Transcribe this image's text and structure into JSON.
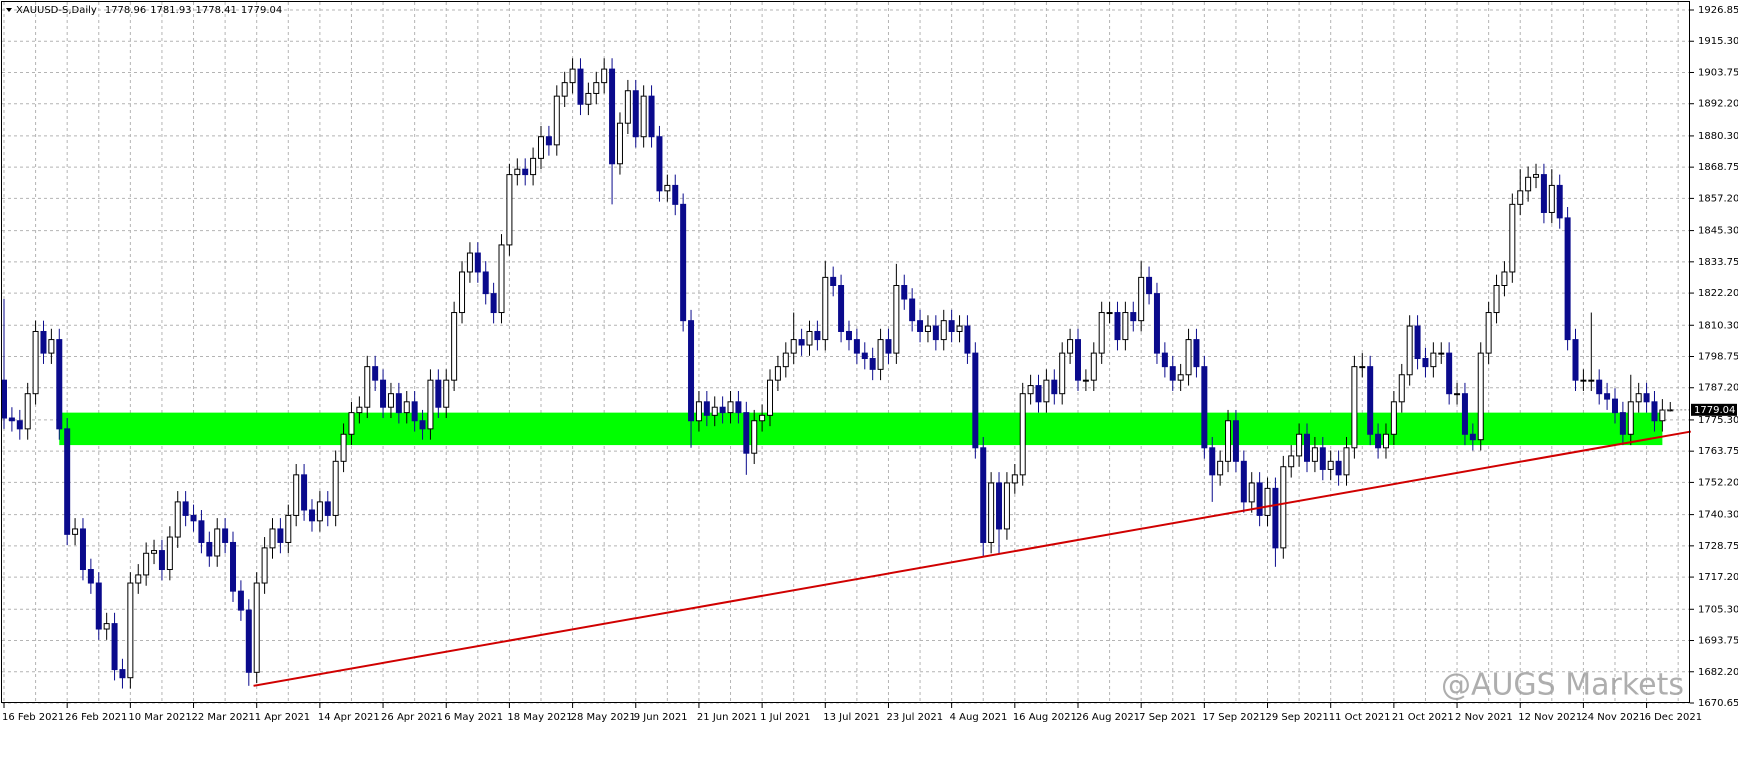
{
  "chart_data": {
    "type": "candlestick",
    "title": "XAUUSD-S,Daily",
    "watermark": "@AUGS Markets",
    "up_color": "#ffffff",
    "down_color": "#0a0a8c",
    "grid": true,
    "ylim": [
      1670.65,
      1926.85
    ],
    "yticks": [
      1670.65,
      {
        "value": 1682.2,
        "label": "1682.20"
      },
      1693.75,
      {
        "value": 1705.3,
        "label": "1705.30"
      },
      {
        "value": 1717.2,
        "label": "1717.20"
      },
      1728.75,
      {
        "value": 1740.3,
        "label": "1740.30"
      },
      {
        "value": 1752.2,
        "label": "1752.20"
      },
      1763.75,
      {
        "value": 1775.3,
        "label": "1775.30"
      },
      {
        "value": 1787.2,
        "label": "1787.20"
      },
      1798.75,
      {
        "value": 1810.3,
        "label": "1810.30"
      },
      {
        "value": 1822.2,
        "label": "1822.20"
      },
      1833.75,
      {
        "value": 1845.3,
        "label": "1845.30"
      },
      {
        "value": 1857.2,
        "label": "1857.20"
      },
      1868.75,
      {
        "value": 1880.3,
        "label": "1880.30"
      },
      {
        "value": 1892.2,
        "label": "1892.20"
      },
      1903.75,
      {
        "value": 1915.3,
        "label": "1915.30"
      },
      1926.85
    ],
    "categories": [
      "16 Feb 2021",
      null,
      null,
      null,
      null,
      null,
      null,
      null,
      "26 Feb 2021",
      null,
      null,
      null,
      null,
      null,
      null,
      null,
      "10 Mar 2021",
      null,
      null,
      null,
      null,
      null,
      null,
      null,
      "22 Mar 2021",
      null,
      null,
      null,
      null,
      null,
      null,
      null,
      "1 Apr 2021",
      null,
      null,
      null,
      null,
      null,
      null,
      null,
      "14 Apr 2021",
      null,
      null,
      null,
      null,
      null,
      null,
      null,
      "26 Apr 2021",
      null,
      null,
      null,
      null,
      null,
      null,
      null,
      "6 May 2021",
      null,
      null,
      null,
      null,
      null,
      null,
      null,
      "18 May 2021",
      null,
      null,
      null,
      null,
      null,
      null,
      null,
      "28 May 2021",
      null,
      null,
      null,
      null,
      null,
      null,
      null,
      "9 Jun 2021",
      null,
      null,
      null,
      null,
      null,
      null,
      null,
      "21 Jun 2021",
      null,
      null,
      null,
      null,
      null,
      null,
      null,
      "1 Jul 2021",
      null,
      null,
      null,
      null,
      null,
      null,
      null,
      "13 Jul 2021",
      null,
      null,
      null,
      null,
      null,
      null,
      null,
      "23 Jul 2021",
      null,
      null,
      null,
      null,
      null,
      null,
      null,
      "4 Aug 2021",
      null,
      null,
      null,
      null,
      null,
      null,
      null,
      "16 Aug 2021",
      null,
      null,
      null,
      null,
      null,
      null,
      null,
      "26 Aug 2021",
      null,
      null,
      null,
      null,
      null,
      null,
      null,
      "7 Sep 2021",
      null,
      null,
      null,
      null,
      null,
      null,
      null,
      "17 Sep 2021",
      null,
      null,
      null,
      null,
      null,
      null,
      null,
      "29 Sep 2021",
      null,
      null,
      null,
      null,
      null,
      null,
      null,
      "11 Oct 2021",
      null,
      null,
      null,
      null,
      null,
      null,
      null,
      "21 Oct 2021",
      null,
      null,
      null,
      null,
      null,
      null,
      null,
      "2 Nov 2021",
      null,
      null,
      null,
      null,
      null,
      null,
      null,
      "12 Nov 2021",
      null,
      null,
      null,
      null,
      null,
      null,
      null,
      "24 Nov 2021",
      null,
      null,
      null,
      null,
      null,
      null,
      null,
      "6 Dec 2021",
      null,
      null,
      null
    ],
    "open": [
      1790,
      1776,
      1775,
      1772,
      1785,
      1808,
      1800,
      1805,
      1772,
      1733,
      1735,
      1720,
      1715,
      1698,
      1700,
      1683,
      1680,
      1715,
      1718,
      1726,
      1727,
      1720,
      1732,
      1745,
      1740,
      1738,
      1730,
      1725,
      1735,
      1730,
      1712,
      1705,
      1682,
      1715,
      1728,
      1735,
      1730,
      1740,
      1755,
      1742,
      1738,
      1745,
      1740,
      1760,
      1770,
      1778,
      1780,
      1795,
      1790,
      1780,
      1785,
      1778,
      1782,
      1775,
      1772,
      1790,
      1780,
      1790,
      1815,
      1830,
      1837,
      1830,
      1822,
      1815,
      1840,
      1866,
      1868,
      1866,
      1872,
      1880,
      1877,
      1895,
      1900,
      1905,
      1892,
      1896,
      1900,
      1905,
      1870,
      1885,
      1897,
      1880,
      1895,
      1880,
      1860,
      1862,
      1855,
      1812,
      1775,
      1782,
      1777,
      1780,
      1778,
      1782,
      1778,
      1763,
      1775,
      1777,
      1790,
      1795,
      1800,
      1805,
      1803,
      1808,
      1805,
      1828,
      1825,
      1808,
      1805,
      1800,
      1798,
      1794,
      1805,
      1800,
      1825,
      1820,
      1812,
      1808,
      1810,
      1805,
      1812,
      1808,
      1810,
      1800,
      1765,
      1730,
      1752,
      1735,
      1752,
      1755,
      1785,
      1788,
      1782,
      1790,
      1785,
      1800,
      1805,
      1790,
      1790,
      1800,
      1815,
      1815,
      1805,
      1815,
      1812,
      1828,
      1822,
      1800,
      1795,
      1790,
      1792,
      1805,
      1795,
      1765,
      1755,
      1760,
      1775,
      1760,
      1745,
      1752,
      1740,
      1750,
      1728,
      1758,
      1762,
      1770,
      1760,
      1765,
      1757,
      1760,
      1755,
      1765,
      1795,
      1795,
      1770,
      1765,
      1770,
      1782,
      1792,
      1810,
      1798,
      1795,
      1800,
      1800,
      1785,
      1785,
      1770,
      1768,
      1800,
      1815,
      1825,
      1830,
      1855,
      1860,
      1865,
      1866,
      1852,
      1862,
      1850,
      1805,
      1790,
      1790,
      1790,
      1785,
      1783,
      1778,
      1770,
      1782,
      1785,
      1782,
      1775,
      1778.96
    ],
    "high": [
      1820,
      1780,
      1779,
      1789,
      1812,
      1812,
      1809,
      1809,
      1776,
      1739,
      1739,
      1724,
      1719,
      1704,
      1704,
      1687,
      1719,
      1722,
      1730,
      1731,
      1731,
      1736,
      1749,
      1749,
      1744,
      1742,
      1734,
      1739,
      1739,
      1734,
      1716,
      1709,
      1719,
      1732,
      1739,
      1739,
      1744,
      1759,
      1759,
      1746,
      1749,
      1749,
      1764,
      1774,
      1782,
      1784,
      1799,
      1799,
      1794,
      1789,
      1789,
      1786,
      1786,
      1779,
      1794,
      1794,
      1794,
      1819,
      1834,
      1841,
      1841,
      1834,
      1826,
      1844,
      1870,
      1872,
      1872,
      1876,
      1884,
      1884,
      1899,
      1904,
      1909,
      1909,
      1900,
      1904,
      1909,
      1909,
      1889,
      1901,
      1901,
      1899,
      1899,
      1884,
      1866,
      1866,
      1859,
      1816,
      1786,
      1786,
      1784,
      1784,
      1786,
      1786,
      1782,
      1779,
      1781,
      1794,
      1799,
      1804,
      1815,
      1809,
      1812,
      1812,
      1834,
      1832,
      1829,
      1812,
      1809,
      1804,
      1802,
      1809,
      1809,
      1833,
      1829,
      1824,
      1816,
      1814,
      1814,
      1816,
      1816,
      1814,
      1814,
      1804,
      1769,
      1756,
      1756,
      1756,
      1759,
      1789,
      1792,
      1792,
      1794,
      1794,
      1804,
      1809,
      1809,
      1794,
      1804,
      1819,
      1819,
      1819,
      1819,
      1819,
      1834,
      1832,
      1826,
      1804,
      1799,
      1796,
      1809,
      1809,
      1799,
      1769,
      1764,
      1779,
      1779,
      1764,
      1756,
      1756,
      1754,
      1754,
      1762,
      1766,
      1774,
      1774,
      1769,
      1769,
      1764,
      1764,
      1769,
      1799,
      1800,
      1799,
      1774,
      1774,
      1786,
      1796,
      1814,
      1814,
      1802,
      1804,
      1804,
      1804,
      1789,
      1789,
      1774,
      1804,
      1819,
      1829,
      1834,
      1859,
      1868,
      1869,
      1870,
      1870,
      1868,
      1866,
      1854,
      1809,
      1794,
      1815,
      1794,
      1789,
      1787,
      1782,
      1792,
      1789,
      1789,
      1786,
      1783,
      1781.93
    ],
    "low": [
      1772,
      1771,
      1768,
      1768,
      1781,
      1796,
      1796,
      1768,
      1729,
      1729,
      1716,
      1711,
      1694,
      1694,
      1679,
      1676,
      1676,
      1711,
      1714,
      1722,
      1716,
      1716,
      1728,
      1736,
      1734,
      1726,
      1721,
      1721,
      1726,
      1708,
      1701,
      1677,
      1678,
      1711,
      1724,
      1726,
      1726,
      1736,
      1738,
      1734,
      1734,
      1736,
      1736,
      1756,
      1766,
      1774,
      1776,
      1786,
      1776,
      1776,
      1774,
      1774,
      1771,
      1768,
      1768,
      1776,
      1776,
      1786,
      1811,
      1826,
      1826,
      1818,
      1811,
      1811,
      1836,
      1862,
      1862,
      1862,
      1868,
      1873,
      1873,
      1891,
      1896,
      1888,
      1888,
      1892,
      1896,
      1855,
      1866,
      1881,
      1876,
      1876,
      1876,
      1856,
      1856,
      1851,
      1808,
      1765,
      1771,
      1773,
      1773,
      1774,
      1774,
      1774,
      1755,
      1759,
      1771,
      1773,
      1786,
      1791,
      1796,
      1799,
      1799,
      1801,
      1801,
      1821,
      1804,
      1801,
      1796,
      1794,
      1790,
      1790,
      1796,
      1796,
      1816,
      1808,
      1804,
      1804,
      1801,
      1801,
      1804,
      1804,
      1796,
      1761,
      1725,
      1726,
      1726,
      1731,
      1748,
      1751,
      1781,
      1778,
      1778,
      1781,
      1781,
      1796,
      1786,
      1786,
      1786,
      1796,
      1811,
      1801,
      1801,
      1808,
      1808,
      1818,
      1796,
      1791,
      1786,
      1786,
      1788,
      1791,
      1761,
      1745,
      1751,
      1756,
      1756,
      1741,
      1741,
      1736,
      1736,
      1721,
      1724,
      1754,
      1758,
      1756,
      1756,
      1753,
      1753,
      1751,
      1751,
      1761,
      1791,
      1766,
      1761,
      1761,
      1766,
      1778,
      1788,
      1794,
      1791,
      1791,
      1796,
      1781,
      1781,
      1766,
      1764,
      1764,
      1796,
      1811,
      1821,
      1826,
      1851,
      1856,
      1861,
      1848,
      1848,
      1846,
      1801,
      1786,
      1786,
      1786,
      1781,
      1779,
      1774,
      1766,
      1766,
      1778,
      1778,
      1771,
      1771,
      1778.41
    ],
    "close": [
      1776,
      1775,
      1772,
      1785,
      1808,
      1800,
      1805,
      1772,
      1733,
      1735,
      1720,
      1715,
      1698,
      1700,
      1683,
      1680,
      1715,
      1718,
      1726,
      1727,
      1720,
      1732,
      1745,
      1740,
      1738,
      1730,
      1725,
      1735,
      1730,
      1712,
      1705,
      1682,
      1715,
      1728,
      1735,
      1730,
      1740,
      1755,
      1742,
      1738,
      1745,
      1740,
      1760,
      1770,
      1778,
      1780,
      1795,
      1790,
      1780,
      1785,
      1778,
      1782,
      1775,
      1772,
      1790,
      1780,
      1790,
      1815,
      1830,
      1837,
      1830,
      1822,
      1815,
      1840,
      1866,
      1868,
      1866,
      1872,
      1880,
      1877,
      1895,
      1900,
      1905,
      1892,
      1896,
      1900,
      1905,
      1870,
      1885,
      1897,
      1880,
      1895,
      1880,
      1860,
      1862,
      1855,
      1812,
      1775,
      1782,
      1777,
      1780,
      1778,
      1782,
      1778,
      1763,
      1775,
      1777,
      1790,
      1795,
      1800,
      1805,
      1803,
      1808,
      1805,
      1828,
      1825,
      1808,
      1805,
      1800,
      1798,
      1794,
      1805,
      1800,
      1825,
      1820,
      1812,
      1808,
      1810,
      1805,
      1812,
      1808,
      1810,
      1800,
      1765,
      1730,
      1752,
      1735,
      1752,
      1755,
      1785,
      1788,
      1782,
      1790,
      1785,
      1800,
      1805,
      1790,
      1790,
      1800,
      1815,
      1815,
      1805,
      1815,
      1812,
      1828,
      1822,
      1800,
      1795,
      1790,
      1792,
      1805,
      1795,
      1765,
      1755,
      1760,
      1775,
      1760,
      1745,
      1752,
      1740,
      1750,
      1728,
      1758,
      1762,
      1770,
      1760,
      1765,
      1757,
      1760,
      1755,
      1765,
      1795,
      1795,
      1770,
      1765,
      1770,
      1782,
      1792,
      1810,
      1798,
      1795,
      1800,
      1800,
      1785,
      1785,
      1770,
      1768,
      1800,
      1815,
      1825,
      1830,
      1855,
      1860,
      1865,
      1866,
      1852,
      1862,
      1850,
      1805,
      1790,
      1790,
      1790,
      1785,
      1783,
      1778,
      1770,
      1782,
      1785,
      1782,
      1775,
      1778.96,
      1779.04
    ],
    "zone": {
      "x": [
        7,
        210
      ],
      "y": [
        1766,
        1778
      ],
      "color": "#00ff00"
    },
    "trendline": {
      "x": [
        31.6,
        213.6
      ],
      "y": [
        1677,
        1771
      ],
      "color": "#d00000"
    }
  }
}
